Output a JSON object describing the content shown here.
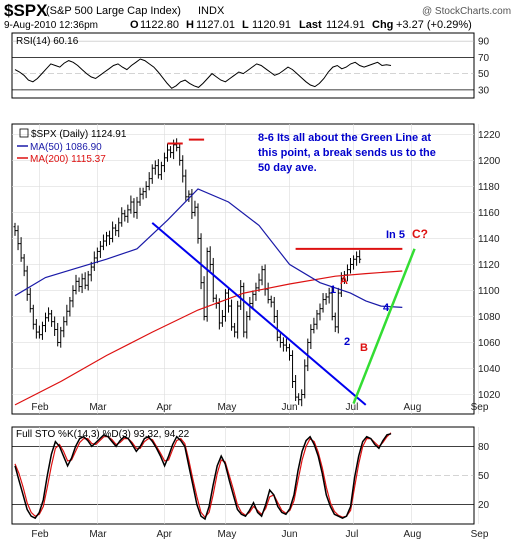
{
  "header": {
    "symbol": "$SPX",
    "name": "(S&P 500 Large Cap Index)",
    "exchange": "INDX",
    "watermark": "@ StockCharts.com",
    "date": "9-Aug-2010 12:36pm",
    "open_label": "O",
    "open": "1122.80",
    "high_label": "H",
    "high": "1127.01",
    "low_label": "L",
    "low": "1120.91",
    "last_label": "Last",
    "last": "1124.91",
    "chg_label": "Chg",
    "chg": "+3.27 (+0.29%)"
  },
  "colors": {
    "price_bars": "#000000",
    "ma50": "#1a1aa8",
    "ma200": "#dd1111",
    "trendline_blue": "#0000ee",
    "trendline_green": "#33dd33",
    "resistance_red": "#dd1111",
    "annotation_blue": "#0000cc",
    "annotation_red": "#dd1111",
    "rsi_fill": "#888888",
    "sto_k": "#000000",
    "sto_d": "#dd1111"
  },
  "chart_data": [
    {
      "type": "line",
      "panel": "rsi",
      "legend": "RSI(14) 60.16",
      "yticks": [
        90,
        70,
        50,
        30
      ],
      "ylim": [
        20,
        100
      ],
      "series": [
        {
          "name": "RSI(14)",
          "values": [
            55,
            52,
            48,
            42,
            40,
            44,
            50,
            56,
            62,
            60,
            58,
            63,
            66,
            64,
            60,
            55,
            50,
            46,
            44,
            48,
            52,
            56,
            60,
            62,
            58,
            55,
            60,
            64,
            68,
            66,
            62,
            58,
            52,
            45,
            38,
            32,
            35,
            40,
            42,
            38,
            35,
            33,
            38,
            44,
            50,
            46,
            42,
            40,
            44,
            48,
            52,
            50,
            54,
            58,
            62,
            60,
            56,
            52,
            48,
            50,
            54,
            58,
            55,
            50,
            45,
            40,
            36,
            34,
            38,
            44,
            52,
            58,
            60,
            56,
            58,
            62,
            64,
            60,
            58,
            60,
            62,
            64,
            60,
            61,
            60
          ]
        }
      ]
    },
    {
      "type": "candlestick",
      "panel": "price",
      "legend": [
        "$SPX (Daily) 1124.91",
        "MA(50) 1086.90",
        "MA(200) 1115.37"
      ],
      "yticks": [
        1220,
        1200,
        1180,
        1160,
        1140,
        1120,
        1100,
        1080,
        1060,
        1040,
        1020
      ],
      "ylim": [
        1005,
        1228
      ],
      "xticks": [
        "Feb",
        "Mar",
        "Apr",
        "May",
        "Jun",
        "Jul",
        "Aug",
        "Sep"
      ],
      "x_index": {
        "Feb": 8,
        "Mar": 27,
        "Apr": 49,
        "May": 69,
        "Jun": 90,
        "Jul": 111,
        "Aug": 130,
        "Sep": 152
      },
      "close": [
        1146,
        1136,
        1125,
        1115,
        1097,
        1086,
        1074,
        1068,
        1066,
        1073,
        1079,
        1082,
        1076,
        1070,
        1060,
        1069,
        1076,
        1084,
        1092,
        1100,
        1107,
        1103,
        1109,
        1104,
        1112,
        1118,
        1125,
        1130,
        1134,
        1138,
        1142,
        1140,
        1148,
        1146,
        1152,
        1159,
        1157,
        1162,
        1168,
        1160,
        1168,
        1174,
        1176,
        1180,
        1186,
        1194,
        1196,
        1189,
        1196,
        1202,
        1208,
        1206,
        1212,
        1210,
        1200,
        1188,
        1172,
        1174,
        1160,
        1164,
        1140,
        1106,
        1080,
        1130,
        1120,
        1094,
        1090,
        1075,
        1080,
        1098,
        1088,
        1072,
        1068,
        1088,
        1103,
        1068,
        1080,
        1090,
        1097,
        1102,
        1108,
        1116,
        1101,
        1093,
        1091,
        1080,
        1064,
        1060,
        1058,
        1056,
        1050,
        1030,
        1018,
        1016,
        1020,
        1042,
        1060,
        1070,
        1074,
        1082,
        1086,
        1093,
        1095,
        1098,
        1080,
        1072,
        1098,
        1109,
        1112,
        1116,
        1120,
        1124,
        1126,
        1124
      ],
      "series": [
        {
          "name": "MA(50)",
          "points": [
            [
              0,
              1096
            ],
            [
              10,
              1110
            ],
            [
              20,
              1117
            ],
            [
              30,
              1124
            ],
            [
              40,
              1132
            ],
            [
              50,
              1154
            ],
            [
              60,
              1178
            ],
            [
              70,
              1168
            ],
            [
              80,
              1150
            ],
            [
              90,
              1120
            ],
            [
              100,
              1106
            ],
            [
              110,
              1098
            ],
            [
              115,
              1092
            ],
            [
              120,
              1088
            ],
            [
              127,
              1087
            ]
          ]
        },
        {
          "name": "MA(200)",
          "points": [
            [
              0,
              1012
            ],
            [
              15,
              1030
            ],
            [
              30,
              1050
            ],
            [
              45,
              1068
            ],
            [
              60,
              1085
            ],
            [
              75,
              1098
            ],
            [
              90,
              1105
            ],
            [
              105,
              1111
            ],
            [
              115,
              1113
            ],
            [
              127,
              1115
            ]
          ]
        }
      ],
      "trendlines": [
        {
          "name": "blue-down",
          "from": [
            45,
            1152
          ],
          "to": [
            115,
            1012
          ]
        },
        {
          "name": "green-up",
          "from": [
            111,
            1013
          ],
          "to": [
            131,
            1132
          ]
        },
        {
          "name": "red-resistance",
          "from": [
            92,
            1132
          ],
          "to": [
            127,
            1132
          ]
        },
        {
          "name": "red-top-1",
          "from": [
            50,
            1213
          ],
          "to": [
            55,
            1213
          ]
        },
        {
          "name": "red-top-2",
          "from": [
            57,
            1216
          ],
          "to": [
            62,
            1216
          ]
        }
      ],
      "annotations": [
        {
          "text": "8-6 Its all about the Green Line at",
          "color": "blue"
        },
        {
          "text": "this point, a break sends us to the",
          "color": "blue"
        },
        {
          "text": "50 day ave.",
          "color": "blue"
        },
        {
          "text": "In 5",
          "color": "blue"
        },
        {
          "text": "C?",
          "color": "red"
        },
        {
          "text": "A",
          "color": "red"
        },
        {
          "text": "B",
          "color": "red"
        },
        {
          "text": "1",
          "color": "blue"
        },
        {
          "text": "2",
          "color": "blue"
        },
        {
          "text": "4",
          "color": "blue"
        }
      ]
    },
    {
      "type": "line",
      "panel": "stochastic",
      "legend": "Full STO %K(14,3) %D(3) 93.32, 94.22",
      "yticks": [
        80,
        50,
        20
      ],
      "ylim": [
        0,
        100
      ],
      "xticks": [
        "Feb",
        "Mar",
        "Apr",
        "May",
        "Jun",
        "Jul",
        "Aug",
        "Sep"
      ],
      "series": [
        {
          "name": "%K",
          "values": [
            60,
            45,
            30,
            15,
            8,
            6,
            12,
            25,
            50,
            72,
            85,
            80,
            70,
            60,
            68,
            80,
            88,
            90,
            86,
            80,
            84,
            88,
            92,
            90,
            85,
            80,
            86,
            90,
            88,
            82,
            75,
            80,
            88,
            90,
            85,
            78,
            70,
            60,
            70,
            82,
            90,
            86,
            80,
            60,
            40,
            20,
            8,
            5,
            18,
            40,
            60,
            70,
            62,
            45,
            30,
            15,
            10,
            8,
            14,
            22,
            12,
            8,
            20,
            35,
            30,
            18,
            12,
            10,
            16,
            30,
            55,
            75,
            86,
            90,
            82,
            70,
            52,
            30,
            18,
            10,
            8,
            6,
            8,
            18,
            48,
            70,
            85,
            90,
            88,
            82,
            78,
            86,
            92,
            93
          ]
        },
        {
          "name": "%D",
          "values": [
            62,
            52,
            38,
            22,
            12,
            8,
            10,
            18,
            38,
            60,
            78,
            82,
            75,
            65,
            66,
            75,
            84,
            88,
            88,
            83,
            82,
            86,
            90,
            90,
            87,
            82,
            84,
            88,
            88,
            84,
            78,
            78,
            85,
            88,
            87,
            80,
            73,
            65,
            66,
            77,
            86,
            88,
            83,
            66,
            46,
            28,
            12,
            7,
            12,
            30,
            52,
            66,
            64,
            50,
            36,
            20,
            12,
            9,
            12,
            18,
            14,
            10,
            16,
            28,
            30,
            22,
            14,
            11,
            14,
            24,
            45,
            66,
            80,
            88,
            85,
            74,
            58,
            38,
            22,
            13,
            9,
            7,
            8,
            14,
            38,
            62,
            80,
            88,
            88,
            84,
            80,
            84,
            90,
            94
          ]
        }
      ]
    }
  ]
}
